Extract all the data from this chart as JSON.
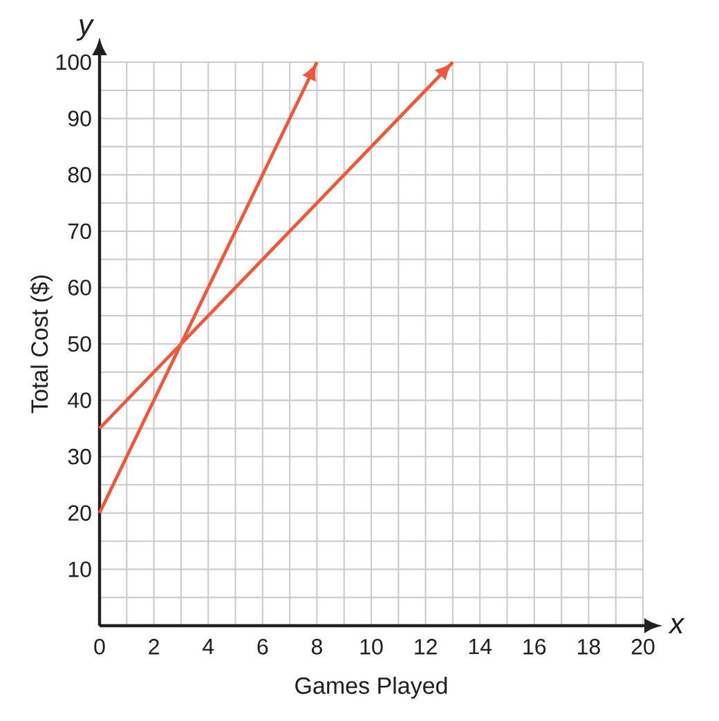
{
  "chart_data": {
    "type": "line",
    "xlabel": "Games Played",
    "ylabel": "Total Cost ($)",
    "annotations": [
      "y",
      "x"
    ],
    "xlim": [
      0,
      20
    ],
    "ylim": [
      0,
      100
    ],
    "xticks": [
      0,
      {
        "value": 1,
        "label": null
      },
      2,
      {
        "value": 3,
        "label": null
      },
      4,
      {
        "value": 5,
        "label": null
      },
      6,
      {
        "value": 7,
        "label": null
      },
      8,
      {
        "value": 9,
        "label": null
      },
      10,
      {
        "value": 11,
        "label": null
      },
      12,
      {
        "value": 13,
        "label": null
      },
      14,
      {
        "value": 15,
        "label": null
      },
      16,
      {
        "value": 17,
        "label": null
      },
      18,
      {
        "value": 19,
        "label": null
      },
      20
    ],
    "yticks": [
      {
        "value": 5,
        "label": null
      },
      10,
      {
        "value": 15,
        "label": null
      },
      20,
      {
        "value": 25,
        "label": null
      },
      30,
      {
        "value": 35,
        "label": null
      },
      40,
      {
        "value": 45,
        "label": null
      },
      50,
      {
        "value": 55,
        "label": null
      },
      60,
      {
        "value": 65,
        "label": null
      },
      70,
      {
        "value": 75,
        "label": null
      },
      80,
      {
        "value": 85,
        "label": null
      },
      90,
      {
        "value": 95,
        "label": null
      },
      100
    ],
    "grid": true,
    "series": [
      {
        "color": "#f0573b",
        "x": [
          0,
          8
        ],
        "values": [
          20,
          100
        ]
      },
      {
        "color": "#f0573b",
        "x": [
          0,
          13
        ],
        "values": [
          35,
          100
        ]
      }
    ]
  }
}
